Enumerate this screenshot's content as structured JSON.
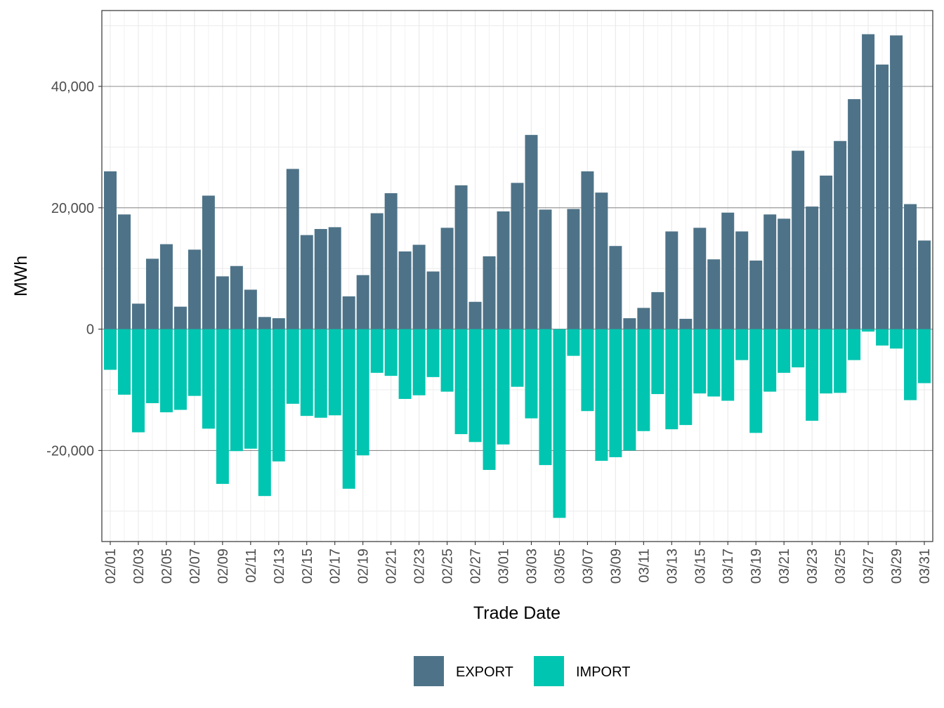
{
  "chart_data": {
    "type": "bar",
    "xlabel": "Trade Date",
    "ylabel": "MWh",
    "ylim": [
      -35000,
      52500
    ],
    "y_ticks": [
      -20000,
      0,
      20000,
      40000
    ],
    "y_tick_labels": [
      "-20,000",
      "0",
      "20,000",
      "40,000"
    ],
    "grid": true,
    "legend_position": "bottom",
    "categories": [
      "02/01",
      "02/02",
      "02/03",
      "02/04",
      "02/05",
      "02/06",
      "02/07",
      "02/08",
      "02/09",
      "02/10",
      "02/11",
      "02/12",
      "02/13",
      "02/14",
      "02/15",
      "02/16",
      "02/17",
      "02/18",
      "02/19",
      "02/20",
      "02/21",
      "02/22",
      "02/23",
      "02/24",
      "02/25",
      "02/26",
      "02/27",
      "02/28",
      "03/01",
      "03/02",
      "03/03",
      "03/04",
      "03/05",
      "03/06",
      "03/07",
      "03/08",
      "03/09",
      "03/10",
      "03/11",
      "03/12",
      "03/13",
      "03/14",
      "03/15",
      "03/16",
      "03/17",
      "03/18",
      "03/19",
      "03/20",
      "03/21",
      "03/22",
      "03/23",
      "03/24",
      "03/25",
      "03/26",
      "03/27",
      "03/28",
      "03/29",
      "03/30",
      "03/31"
    ],
    "x_tick_labels": [
      "02/01",
      "02/03",
      "02/05",
      "02/07",
      "02/09",
      "02/11",
      "02/13",
      "02/15",
      "02/17",
      "02/19",
      "02/21",
      "02/23",
      "02/25",
      "02/27",
      "03/01",
      "03/03",
      "03/05",
      "03/07",
      "03/09",
      "03/11",
      "03/13",
      "03/15",
      "03/17",
      "03/19",
      "03/21",
      "03/23",
      "03/25",
      "03/27",
      "03/29",
      "03/31"
    ],
    "series": [
      {
        "name": "EXPORT",
        "color": "#4e7388",
        "values": [
          26000,
          18900,
          4200,
          11600,
          14000,
          3700,
          13100,
          22000,
          8700,
          10400,
          6500,
          2000,
          1800,
          26400,
          15500,
          16500,
          16800,
          5400,
          8900,
          19100,
          22400,
          12800,
          13900,
          9500,
          16700,
          23700,
          4500,
          12000,
          19400,
          24100,
          32000,
          19700,
          0,
          19800,
          26000,
          22500,
          13700,
          1800,
          3500,
          6100,
          16100,
          1700,
          16700,
          11500,
          19200,
          16100,
          11300,
          18900,
          18200,
          29400,
          20200,
          25300,
          31000,
          37900,
          48600,
          43600,
          48400,
          20600,
          14600
        ]
      },
      {
        "name": "IMPORT",
        "color": "#00c5b0",
        "values": [
          -6700,
          -10800,
          -17000,
          -12200,
          -13700,
          -13300,
          -11000,
          -16400,
          -25500,
          -20100,
          -19700,
          -27500,
          -21800,
          -12300,
          -14300,
          -14600,
          -14200,
          -26300,
          -20800,
          -7200,
          -7700,
          -11500,
          -10900,
          -7900,
          -10300,
          -17300,
          -18600,
          -23200,
          -19000,
          -9500,
          -14700,
          -22400,
          -31100,
          -4400,
          -13500,
          -21700,
          -21100,
          -20000,
          -16800,
          -10700,
          -16500,
          -15800,
          -10600,
          -11100,
          -11800,
          -5100,
          -17100,
          -10300,
          -7200,
          -6300,
          -15100,
          -10600,
          -10500,
          -5100,
          -400,
          -2700,
          -3200,
          -11700,
          -8900
        ]
      }
    ]
  }
}
